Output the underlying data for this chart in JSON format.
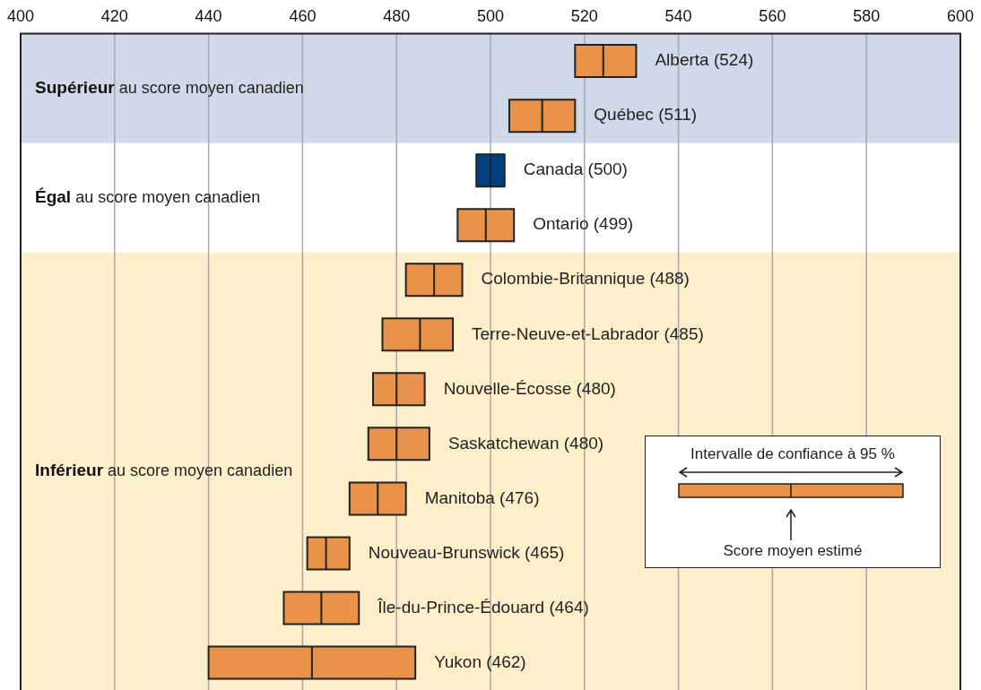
{
  "chart_data": {
    "type": "box",
    "orientation": "horizontal",
    "categories": [
      "Alberta (524)",
      "Québec (511)",
      "Canada (500)",
      "Ontario (499)",
      "Colombie-Britannique (488)",
      "Terre-Neuve-et-Labrador (485)",
      "Nouvelle-Écosse (480)",
      "Saskatchewan (480)",
      "Manitoba (476)",
      "Nouveau-Brunswick (465)",
      "Île-du-Prince-Édouard (464)",
      "Yukon (462)"
    ],
    "boxes": [
      {
        "low": 518,
        "q1": 518,
        "median": 524,
        "q3": 531,
        "high": 531
      },
      {
        "low": 504,
        "q1": 504,
        "median": 511,
        "q3": 518,
        "high": 518
      },
      {
        "low": 497,
        "q1": 497,
        "median": 500,
        "q3": 503,
        "high": 503
      },
      {
        "low": 493,
        "q1": 493,
        "median": 499,
        "q3": 505,
        "high": 505
      },
      {
        "low": 482,
        "q1": 482,
        "median": 488,
        "q3": 494,
        "high": 494
      },
      {
        "low": 477,
        "q1": 477,
        "median": 485,
        "q3": 492,
        "high": 492
      },
      {
        "low": 475,
        "q1": 475,
        "median": 480,
        "q3": 486,
        "high": 486
      },
      {
        "low": 474,
        "q1": 474,
        "median": 480,
        "q3": 487,
        "high": 487
      },
      {
        "low": 470,
        "q1": 470,
        "median": 476,
        "q3": 482,
        "high": 482
      },
      {
        "low": 461,
        "q1": 461,
        "median": 465,
        "q3": 470,
        "high": 470
      },
      {
        "low": 456,
        "q1": 456,
        "median": 464,
        "q3": 472,
        "high": 472
      },
      {
        "low": 440,
        "q1": 440,
        "median": 462,
        "q3": 484,
        "high": 484
      }
    ],
    "colors": [
      "#e8924a",
      "#e8924a",
      "#003f7f",
      "#e8924a",
      "#e8924a",
      "#e8924a",
      "#e8924a",
      "#e8924a",
      "#e8924a",
      "#e8924a",
      "#e8924a",
      "#e8924a"
    ],
    "xlim": [
      400,
      600
    ],
    "xticks": [
      400,
      420,
      440,
      460,
      480,
      500,
      520,
      540,
      560,
      580,
      600
    ],
    "grid": "x",
    "tick_labels": "x",
    "bands": [
      {
        "axis": "y",
        "from": "Alberta (524)",
        "to": "Québec (511)",
        "label": "Supérieur au score moyen canadien",
        "color": "#cfd9ea"
      },
      {
        "axis": "y",
        "from": "Canada (500)",
        "to": "Ontario (499)",
        "label": "Égal au score moyen canadien",
        "color": "#ffffff"
      },
      {
        "axis": "y",
        "from": "Colombie-Britannique (488)",
        "to": "Yukon (462)",
        "label": "Inférieur au score moyen canadien",
        "color": "#fdefc9"
      }
    ],
    "annotations": [
      "Intervalle de confiance à 95 %",
      "Score moyen estimé"
    ]
  }
}
